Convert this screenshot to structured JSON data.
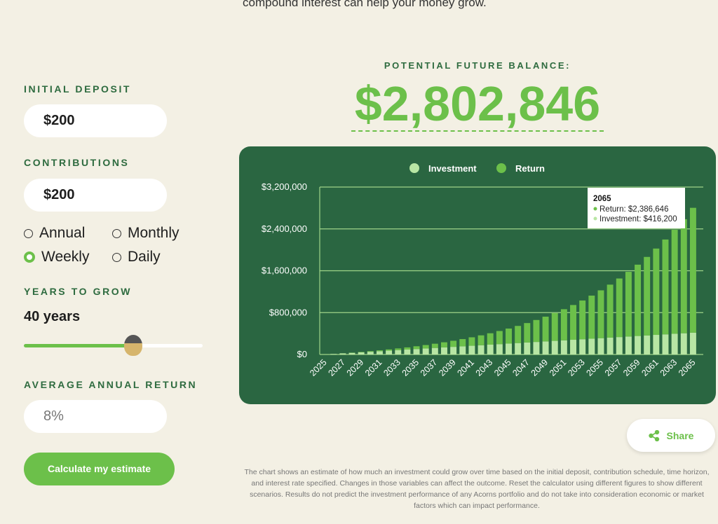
{
  "header": {
    "subtitle": "compound interest can help your money grow."
  },
  "form": {
    "initial_deposit_label": "INITIAL DEPOSIT",
    "initial_deposit": "$200",
    "contributions_label": "CONTRIBUTIONS",
    "contributions": "$200",
    "frequency_options": [
      "Annual",
      "Monthly",
      "Weekly",
      "Daily"
    ],
    "selected_frequency": "Weekly",
    "years_label": "YEARS TO GROW",
    "years": "40 years",
    "return_label": "AVERAGE ANNUAL RETURN",
    "return": "8%",
    "button": "Calculate my estimate"
  },
  "result": {
    "label": "POTENTIAL FUTURE BALANCE:",
    "value": "$2,802,846"
  },
  "chart_data": {
    "type": "bar",
    "stacked": true,
    "categories": [
      "2025",
      null,
      "2027",
      null,
      "2029",
      null,
      "2031",
      null,
      "2033",
      null,
      "2035",
      null,
      "2037",
      null,
      "2039",
      null,
      "2041",
      null,
      "2043",
      null,
      "2045",
      null,
      "2047",
      null,
      "2049",
      null,
      "2051",
      null,
      "2053",
      null,
      "2055",
      null,
      "2057",
      null,
      "2059",
      null,
      "2061",
      null,
      "2063",
      null,
      "2065"
    ],
    "series": [
      {
        "name": "Investment",
        "color": "#b8e6a4",
        "values": [
          200,
          10600,
          21000,
          31400,
          41800,
          52200,
          62600,
          73000,
          83400,
          93800,
          104200,
          114600,
          125000,
          135400,
          145800,
          156200,
          166600,
          177000,
          187400,
          197800,
          208200,
          218600,
          229000,
          239400,
          249800,
          260200,
          270600,
          281000,
          291400,
          301800,
          312200,
          322600,
          333000,
          343400,
          353800,
          364200,
          374600,
          385000,
          395400,
          405800,
          416200
        ]
      },
      {
        "name": "Return",
        "color": "#6cc04a",
        "values": [
          0,
          400,
          1700,
          3900,
          7200,
          11500,
          17000,
          23700,
          31900,
          41500,
          52700,
          65700,
          80500,
          97400,
          116400,
          137800,
          161700,
          188400,
          218000,
          250800,
          287100,
          327100,
          371200,
          419600,
          472700,
          531000,
          594600,
          664300,
          740300,
          823200,
          913600,
          1012100,
          1119300,
          1235900,
          1362600,
          1500300,
          1649900,
          1812200,
          1988400,
          2179500,
          2386646
        ]
      }
    ],
    "ylim": [
      0,
      3200000
    ],
    "yticks": [
      {
        "value": 0,
        "label": "$0"
      },
      {
        "value": 800000,
        "label": "$800,000"
      },
      {
        "value": 1600000,
        "label": "$1,600,000"
      },
      {
        "value": 2400000,
        "label": "$2,400,000"
      },
      {
        "value": 3200000,
        "label": "$3,200,000"
      }
    ],
    "grid": true,
    "tooltip": {
      "title": "2065",
      "lines": [
        "Return: $2,386,646",
        "Investment: $416,200"
      ]
    }
  },
  "share": "Share",
  "disclaimer": "The chart shows an estimate of how much an investment could grow over time based on the initial deposit, contribution schedule, time horizon, and interest rate specified.  Changes in those variables can affect the outcome.  Reset the calculator using different figures to show different scenarios.  Results do not predict the investment performance of any Acorns portfolio and do not take into consideration economic or market factors which can impact performance."
}
